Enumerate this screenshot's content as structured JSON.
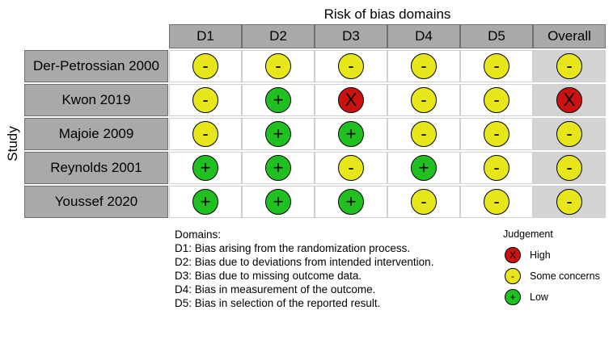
{
  "title": "Risk of bias domains",
  "y_axis_label": "Study",
  "columns": [
    "D1",
    "D2",
    "D3",
    "D4",
    "D5",
    "Overall"
  ],
  "studies": [
    {
      "name": "Der-Petrossian 2000",
      "judgements": [
        "some",
        "some",
        "some",
        "some",
        "some",
        "some"
      ]
    },
    {
      "name": "Kwon 2019",
      "judgements": [
        "some",
        "low",
        "high",
        "some",
        "some",
        "high"
      ]
    },
    {
      "name": "Majoie 2009",
      "judgements": [
        "some",
        "low",
        "low",
        "some",
        "some",
        "some"
      ]
    },
    {
      "name": "Reynolds 2001",
      "judgements": [
        "low",
        "low",
        "some",
        "low",
        "some",
        "some"
      ]
    },
    {
      "name": "Youssef 2020",
      "judgements": [
        "low",
        "low",
        "low",
        "some",
        "some",
        "some"
      ]
    }
  ],
  "judgement_styles": {
    "high": {
      "symbol": "X",
      "color": "#cc1111"
    },
    "some": {
      "symbol": "-",
      "color": "#e6e61a"
    },
    "low": {
      "symbol": "+",
      "color": "#1fc01f"
    }
  },
  "domains_legend": {
    "heading": "Domains:",
    "items": [
      "D1: Bias arising from the randomization process.",
      "D2: Bias due to deviations from intended intervention.",
      "D3: Bias due to missing outcome data.",
      "D4: Bias in measurement of the outcome.",
      "D5: Bias in selection of the reported result."
    ]
  },
  "judgement_legend": {
    "heading": "Judgement",
    "items": [
      {
        "key": "high",
        "label": "High"
      },
      {
        "key": "some",
        "label": "Some concerns"
      },
      {
        "key": "low",
        "label": "Low"
      }
    ]
  }
}
